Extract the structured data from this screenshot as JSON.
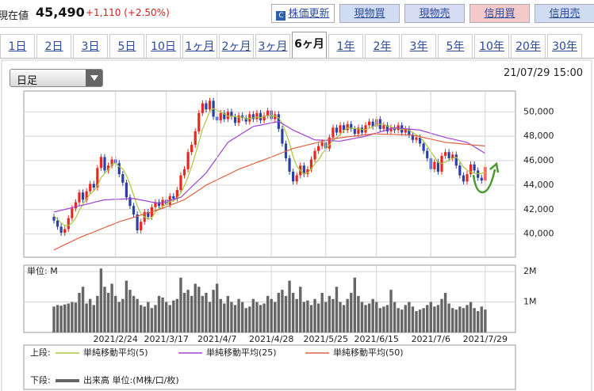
{
  "header": {
    "label": "現在値",
    "price": "45,490",
    "change": "+1,110 (+2.50%)",
    "buttons": [
      "株価更新",
      "現物買",
      "現物売",
      "信用買",
      "信用売"
    ]
  },
  "tabs": [
    "1日",
    "2日",
    "3日",
    "5日",
    "10日",
    "1ヶ月",
    "2ヶ月",
    "3ヶ月",
    "6ヶ月",
    "1年",
    "2年",
    "3年",
    "5年",
    "10年",
    "20年",
    "30年"
  ],
  "active_tab": "6ヶ月",
  "dropdown": "日足",
  "timestamp": "21/07/29 15:00",
  "legend": {
    "upper": "上段:",
    "lower": "下段:"
  },
  "chart_data": [
    {
      "type": "candlestick",
      "up_color": "#e8281e",
      "down_color": "#2840a8",
      "ylim": [
        38100,
        51700
      ],
      "yticks": [
        {
          "value": 40000,
          "label": "40,000"
        },
        {
          "value": 42000,
          "label": "42,000"
        },
        {
          "value": 44000,
          "label": "44,000"
        },
        {
          "value": 46000,
          "label": "46,000"
        },
        {
          "value": 48000,
          "label": "48,000"
        },
        {
          "value": 50000,
          "label": "50,000"
        }
      ],
      "grid": true,
      "open": [
        41400,
        41100,
        40600,
        40100,
        40400,
        41300,
        42100,
        42600,
        43400,
        42800,
        43500,
        44100,
        43800,
        45400,
        46300,
        45200,
        45600,
        46100,
        45800,
        44900,
        44200,
        43000,
        42300,
        41600,
        40300,
        41000,
        41800,
        41400,
        42200,
        42600,
        42300,
        42800,
        42400,
        43100,
        42900,
        43600,
        44800,
        45300,
        46700,
        47300,
        48400,
        49900,
        50700,
        50200,
        50900,
        49600,
        49300,
        49900,
        49400,
        50000,
        49600,
        49100,
        49700,
        49500,
        49200,
        49800,
        49400,
        49900,
        49300,
        49700,
        50100,
        49400,
        49800,
        48600,
        47400,
        46200,
        45100,
        44300,
        44800,
        45600,
        44900,
        45300,
        46100,
        46800,
        47200,
        47500,
        47000,
        47900,
        48700,
        48300,
        48900,
        48500,
        49000,
        48600,
        48200,
        48700,
        48300,
        48900,
        49200,
        48800,
        49400,
        48600,
        48900,
        48400,
        48700,
        48500,
        48900,
        48300,
        48600,
        48100,
        47700,
        47900,
        47400,
        46800,
        46200,
        45300,
        45900,
        45100,
        46400,
        46700,
        46200,
        46500,
        45600,
        44800,
        44300,
        44900,
        45700,
        45200,
        44600,
        44380
      ],
      "high": [
        41650,
        41350,
        40850,
        40650,
        41550,
        42350,
        42850,
        43650,
        43650,
        43750,
        44350,
        44350,
        45650,
        46550,
        46550,
        45850,
        46350,
        46350,
        46050,
        45150,
        44450,
        43250,
        42550,
        41850,
        41250,
        42050,
        42050,
        42450,
        42850,
        42850,
        43050,
        43050,
        43350,
        43350,
        43850,
        45050,
        45550,
        46950,
        47550,
        48650,
        50150,
        50950,
        50950,
        51150,
        51150,
        49850,
        50150,
        50150,
        50250,
        50250,
        49850,
        49950,
        49950,
        49750,
        50050,
        50050,
        50150,
        50150,
        49950,
        50350,
        50350,
        50050,
        50050,
        48850,
        47650,
        46450,
        45350,
        45050,
        45850,
        45850,
        45550,
        46350,
        47050,
        47450,
        47750,
        47750,
        48150,
        48950,
        48950,
        49150,
        49150,
        49250,
        49250,
        48850,
        48950,
        48950,
        49150,
        49450,
        49450,
        49650,
        49650,
        49150,
        49150,
        48950,
        48950,
        49150,
        49150,
        48850,
        48850,
        48350,
        48150,
        48150,
        47650,
        47050,
        46450,
        46150,
        46150,
        46650,
        46950,
        46950,
        46750,
        46750,
        45850,
        45050,
        45150,
        45950,
        45950,
        45450,
        44850,
        45740
      ],
      "low": [
        40850,
        40350,
        39850,
        39850,
        40150,
        41050,
        41850,
        42350,
        42550,
        42550,
        43250,
        43550,
        43550,
        45150,
        44950,
        44950,
        45350,
        45550,
        44650,
        43950,
        42750,
        42050,
        41350,
        40050,
        40050,
        40750,
        41150,
        41150,
        41950,
        42050,
        42050,
        42150,
        42150,
        42650,
        42650,
        43350,
        44550,
        45050,
        46450,
        47050,
        48150,
        49650,
        49950,
        49950,
        49350,
        49050,
        49050,
        49150,
        49150,
        49350,
        48850,
        48850,
        49250,
        48950,
        48950,
        49150,
        49150,
        49050,
        49050,
        49450,
        49150,
        49150,
        48350,
        47150,
        45950,
        44850,
        44050,
        44050,
        44550,
        44650,
        44650,
        45050,
        45850,
        46550,
        46950,
        46750,
        46750,
        47650,
        48050,
        48050,
        48250,
        48250,
        48350,
        47950,
        47950,
        48050,
        48050,
        48650,
        48550,
        48550,
        48350,
        48350,
        48150,
        48150,
        48250,
        48250,
        48050,
        48050,
        47850,
        47450,
        47450,
        47150,
        46550,
        45950,
        45050,
        45050,
        44850,
        44850,
        46150,
        45950,
        45950,
        45350,
        44550,
        44050,
        44050,
        44650,
        44950,
        44350,
        44130,
        44130
      ],
      "close": [
        41100,
        40600,
        40100,
        40400,
        41300,
        42100,
        42600,
        43400,
        42800,
        43500,
        44100,
        43800,
        45400,
        46300,
        45200,
        45600,
        46100,
        45800,
        44900,
        44200,
        43000,
        42300,
        41600,
        40300,
        41000,
        41800,
        41400,
        42200,
        42600,
        42300,
        42800,
        42400,
        43100,
        42900,
        43600,
        44800,
        45300,
        46700,
        47300,
        48400,
        49900,
        50700,
        50200,
        50900,
        49600,
        49300,
        49900,
        49400,
        50000,
        49600,
        49100,
        49700,
        49500,
        49200,
        49800,
        49400,
        49900,
        49300,
        49700,
        50100,
        49400,
        49800,
        48600,
        47400,
        46200,
        45100,
        44300,
        44800,
        45600,
        44900,
        45300,
        46100,
        46800,
        47200,
        47500,
        47000,
        47900,
        48700,
        48300,
        48900,
        48500,
        49000,
        48600,
        48200,
        48700,
        48300,
        48900,
        49200,
        48800,
        49400,
        48600,
        48900,
        48400,
        48700,
        48500,
        48900,
        48300,
        48600,
        48100,
        47700,
        47900,
        47400,
        46800,
        46200,
        45300,
        45900,
        45100,
        46400,
        46700,
        46200,
        46500,
        45600,
        44800,
        44300,
        44900,
        45700,
        45200,
        44600,
        44380,
        45490
      ],
      "series": [
        {
          "name": "単純移動平均(5)",
          "color": "#a8c83c",
          "values": [
            41500,
            41200,
            40900,
            40700,
            40700,
            40900,
            41300,
            41960,
            42440,
            42880,
            43280,
            43520,
            43920,
            44620,
            44960,
            45260,
            45720,
            45800,
            45520,
            45320,
            44800,
            44040,
            43200,
            42280,
            41640,
            41400,
            41220,
            41340,
            41800,
            42060,
            42260,
            42460,
            42640,
            42700,
            42960,
            43360,
            43940,
            44660,
            45540,
            46500,
            47520,
            48600,
            49300,
            50020,
            50260,
            50140,
            49980,
            49820,
            49640,
            49640,
            49600,
            49560,
            49580,
            49420,
            49460,
            49520,
            49560,
            49520,
            49620,
            49680,
            49680,
            49660,
            49520,
            49060,
            48280,
            47420,
            46320,
            45560,
            45200,
            44940,
            44980,
            45340,
            45740,
            46060,
            46580,
            46920,
            47280,
            47660,
            47880,
            48160,
            48460,
            48680,
            48660,
            48640,
            48600,
            48560,
            48540,
            48660,
            48780,
            48920,
            48980,
            48980,
            48820,
            48800,
            48620,
            48680,
            48560,
            48600,
            48480,
            48320,
            48120,
            47940,
            47580,
            47200,
            46720,
            46320,
            45860,
            45780,
            45880,
            46060,
            46180,
            46280,
            45960,
            45480,
            45220,
            45060,
            44980,
            44940,
            44960,
            45070
          ]
        },
        {
          "name": "単純移動平均(25)",
          "color": "#a040d0",
          "values": [
            41800,
            41870,
            41940,
            42010,
            42090,
            42160,
            42230,
            42300,
            42370,
            42440,
            42510,
            42590,
            42660,
            42730,
            42800,
            42810,
            42830,
            42840,
            42850,
            42860,
            42880,
            42890,
            42900,
            42840,
            42790,
            42730,
            42670,
            42610,
            42560,
            42500,
            42580,
            42670,
            42750,
            42830,
            42920,
            43000,
            43290,
            43570,
            43860,
            44140,
            44430,
            44710,
            45000,
            45420,
            45830,
            46250,
            46670,
            47080,
            47500,
            47690,
            47870,
            48060,
            48240,
            48430,
            48610,
            48800,
            48860,
            48910,
            48970,
            49030,
            49090,
            49140,
            49200,
            49030,
            48850,
            48680,
            48500,
            48370,
            48230,
            48100,
            47970,
            47830,
            47700,
            47690,
            47670,
            47660,
            47640,
            47630,
            47610,
            47600,
            47660,
            47710,
            47770,
            47830,
            47890,
            47940,
            48000,
            48090,
            48180,
            48260,
            48350,
            48440,
            48530,
            48610,
            48700,
            48670,
            48640,
            48610,
            48590,
            48560,
            48530,
            48500,
            48410,
            48330,
            48240,
            48160,
            48070,
            47990,
            47900,
            47830,
            47770,
            47700,
            47630,
            47570,
            47500,
            47320,
            47140,
            46960,
            46780,
            46600
          ]
        },
        {
          "name": "単純移動平均(50)",
          "color": "#e06040",
          "values": [
            38700,
            38840,
            38990,
            39130,
            39270,
            39410,
            39560,
            39700,
            39820,
            39940,
            40050,
            40170,
            40290,
            40410,
            40530,
            40650,
            40760,
            40880,
            41000,
            41090,
            41180,
            41270,
            41360,
            41450,
            41550,
            41640,
            41730,
            41820,
            41910,
            42000,
            42110,
            42230,
            42340,
            42460,
            42570,
            42690,
            42800,
            43000,
            43200,
            43400,
            43600,
            43800,
            44000,
            44140,
            44290,
            44430,
            44580,
            44720,
            44870,
            45010,
            45160,
            45300,
            45410,
            45520,
            45630,
            45740,
            45860,
            45970,
            46080,
            46190,
            46300,
            46420,
            46530,
            46650,
            46770,
            46880,
            47000,
            47070,
            47150,
            47220,
            47290,
            47360,
            47440,
            47510,
            47580,
            47650,
            47730,
            47800,
            47840,
            47870,
            47910,
            47950,
            47980,
            48020,
            48050,
            48090,
            48130,
            48160,
            48200,
            48190,
            48180,
            48170,
            48160,
            48150,
            48150,
            48140,
            48130,
            48120,
            48110,
            48100,
            48030,
            47970,
            47900,
            47830,
            47770,
            47700,
            47630,
            47570,
            47500,
            47470,
            47450,
            47420,
            47390,
            47360,
            47340,
            47310,
            47280,
            47250,
            47230,
            47200
          ]
        }
      ]
    },
    {
      "type": "bar",
      "y_label": "単位: M",
      "ylim": [
        0,
        2.21
      ],
      "yticks": [
        {
          "value": 1,
          "label": "1M"
        },
        {
          "value": 2,
          "label": "2M"
        }
      ],
      "grid": true,
      "categories": [
        null,
        null,
        null,
        null,
        null,
        null,
        null,
        null,
        null,
        null,
        null,
        null,
        null,
        null,
        null,
        null,
        null,
        "2021/2/24",
        null,
        null,
        null,
        null,
        null,
        null,
        null,
        null,
        null,
        null,
        null,
        null,
        null,
        "2021/3/17",
        null,
        null,
        null,
        null,
        null,
        null,
        null,
        null,
        null,
        null,
        null,
        null,
        null,
        "2021/4/7",
        null,
        null,
        null,
        null,
        null,
        null,
        null,
        null,
        null,
        null,
        null,
        null,
        null,
        null,
        "2021/4/28",
        null,
        null,
        null,
        null,
        null,
        null,
        null,
        null,
        null,
        null,
        null,
        null,
        null,
        null,
        "2021/5/25",
        null,
        null,
        null,
        null,
        null,
        null,
        null,
        null,
        null,
        null,
        null,
        null,
        null,
        "2021/6/15",
        null,
        null,
        null,
        null,
        null,
        null,
        null,
        null,
        null,
        null,
        null,
        null,
        null,
        null,
        "2021/7/6",
        null,
        null,
        null,
        null,
        null,
        null,
        null,
        null,
        null,
        null,
        null,
        null,
        null,
        null,
        "2021/7/29"
      ],
      "series": [
        {
          "name": "出来高 単位:(M株/口/枚)",
          "color": "#666666",
          "values": [
            0.85,
            0.9,
            0.88,
            0.92,
            0.95,
            1.0,
            0.98,
            1.3,
            1.5,
            0.95,
            1.1,
            0.9,
            1.2,
            2.1,
            1.5,
            1.3,
            1.6,
            1.2,
            1.0,
            1.1,
            1.7,
            1.4,
            1.2,
            1.1,
            0.9,
            0.85,
            1.0,
            0.8,
            0.9,
            1.2,
            1.15,
            1.0,
            0.9,
            1.05,
            1.1,
            1.8,
            1.3,
            1.4,
            1.2,
            1.6,
            1.5,
            1.2,
            1.3,
            1.0,
            1.4,
            1.6,
            1.1,
            0.95,
            1.2,
            1.0,
            0.9,
            1.1,
            1.0,
            0.8,
            0.85,
            1.1,
            1.0,
            0.9,
            0.95,
            1.2,
            1.1,
            1.0,
            1.3,
            1.4,
            1.2,
            1.7,
            1.3,
            1.1,
            1.5,
            1.0,
            1.05,
            0.9,
            1.1,
            0.95,
            1.3,
            1.0,
            1.2,
            1.1,
            1.5,
            1.0,
            0.9,
            1.1,
            1.3,
            1.8,
            1.2,
            1.0,
            0.9,
            0.95,
            1.1,
            1.0,
            0.8,
            0.85,
            0.9,
            1.4,
            1.0,
            0.8,
            0.75,
            0.9,
            1.0,
            0.85,
            0.7,
            0.75,
            0.8,
            0.9,
            1.0,
            0.85,
            0.9,
            1.1,
            1.3,
            0.95,
            0.8,
            0.75,
            0.85,
            0.8,
            0.9,
            1.0,
            0.8,
            0.7,
            0.85,
            0.75
          ]
        }
      ]
    }
  ]
}
